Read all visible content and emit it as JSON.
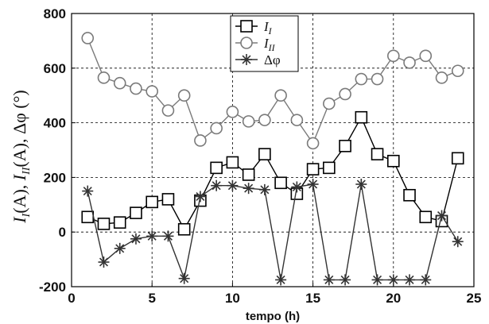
{
  "chart_data": {
    "type": "line",
    "xlabel": "tempo (h)",
    "ylabel_parts": {
      "i_letter": "I",
      "i_sub": "I",
      "a_unit": "(A), ",
      "ii_sub": "II",
      "a_unit2": "(A), Δφ (°)"
    },
    "xlim": [
      0,
      25
    ],
    "ylim": [
      -200,
      800
    ],
    "x_ticks": [
      0,
      5,
      10,
      15,
      20,
      25
    ],
    "y_ticks": [
      -200,
      0,
      200,
      400,
      600,
      800
    ],
    "grid": true,
    "legend_position": "top-center",
    "x": [
      1,
      2,
      3,
      4,
      5,
      6,
      7,
      8,
      9,
      10,
      11,
      12,
      13,
      14,
      15,
      16,
      17,
      18,
      19,
      20,
      21,
      22,
      23,
      24
    ],
    "series": [
      {
        "name": "I",
        "name_sub": "I",
        "marker": "square",
        "color": "#000000",
        "values": [
          55,
          30,
          35,
          70,
          110,
          120,
          10,
          115,
          235,
          255,
          210,
          285,
          180,
          140,
          230,
          235,
          315,
          420,
          285,
          260,
          135,
          55,
          40,
          270
        ]
      },
      {
        "name": "I",
        "name_sub": "II",
        "marker": "circle",
        "color": "#7a7a7a",
        "values": [
          710,
          565,
          545,
          525,
          515,
          445,
          500,
          335,
          380,
          440,
          405,
          410,
          500,
          410,
          325,
          470,
          505,
          560,
          560,
          645,
          620,
          645,
          565,
          590
        ]
      },
      {
        "name": "Δφ",
        "name_sub": "",
        "marker": "star",
        "color": "#333333",
        "values": [
          150,
          -110,
          -60,
          -25,
          -15,
          -15,
          -170,
          130,
          170,
          170,
          160,
          155,
          -175,
          165,
          175,
          -175,
          -175,
          175,
          -175,
          -175,
          -175,
          -175,
          60,
          -35
        ]
      }
    ]
  }
}
